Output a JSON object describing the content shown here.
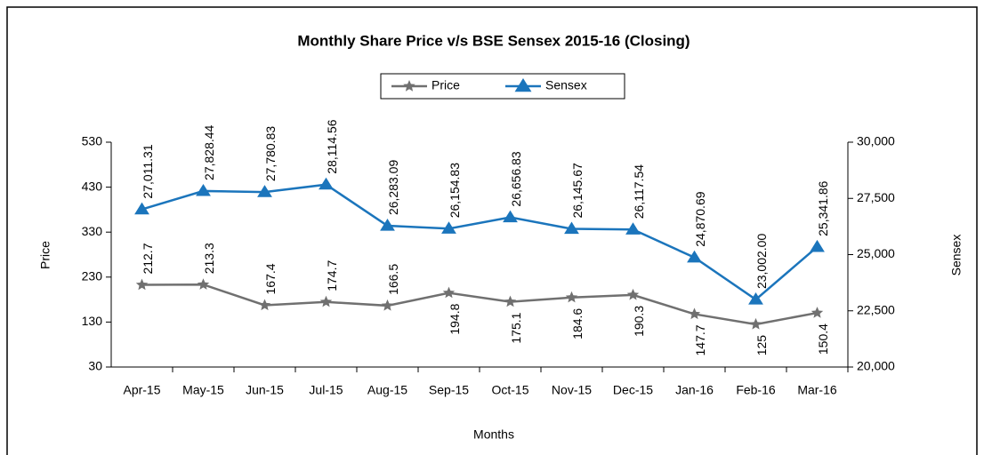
{
  "chart_data": {
    "type": "line",
    "title": "Monthly Share Price v/s BSE Sensex 2015-16 (Closing)",
    "x_label": "Months",
    "y_label": "Price",
    "y2_label": "Sensex",
    "categories": [
      "Apr-15",
      "May-15",
      "Jun-15",
      "Jul-15",
      "Aug-15",
      "Sep-15",
      "Oct-15",
      "Nov-15",
      "Dec-15",
      "Jan-16",
      "Feb-16",
      "Mar-16"
    ],
    "series": [
      {
        "name": "Price",
        "color": "#707070",
        "marker": "star",
        "values": [
          212.7,
          213.3,
          167.4,
          174.7,
          166.5,
          194.8,
          175.1,
          184.6,
          190.3,
          147.7,
          125,
          150.4
        ]
      },
      {
        "name": "Sensex",
        "color": "#1b75bc",
        "marker": "triangle",
        "axis": "y2",
        "values": [
          27011.31,
          27828.44,
          27780.83,
          28114.56,
          26283.09,
          26154.83,
          26656.83,
          26145.67,
          26117.54,
          24870.69,
          23002.0,
          25341.86
        ],
        "value_labels": [
          "27,011.31",
          "27,828.44",
          "27,780.83",
          "28,114.56",
          "26,283.09",
          "26,154.83",
          "26,656.83",
          "26,145.67",
          "26,117.54",
          "24,870.69",
          "23,002.00",
          "25,341.86"
        ]
      }
    ],
    "ylim": [
      30,
      530
    ],
    "yticks": [
      30,
      130,
      230,
      330,
      430,
      530
    ],
    "y2lim": [
      20000,
      30000
    ],
    "y2ticks": [
      {
        "value": 20000,
        "label": "20,000"
      },
      {
        "value": 22500,
        "label": "22,500"
      },
      {
        "value": 25000,
        "label": "25,000"
      },
      {
        "value": 27500,
        "label": "27,500"
      },
      {
        "value": 30000,
        "label": "30,000"
      }
    ],
    "legend": "top"
  }
}
